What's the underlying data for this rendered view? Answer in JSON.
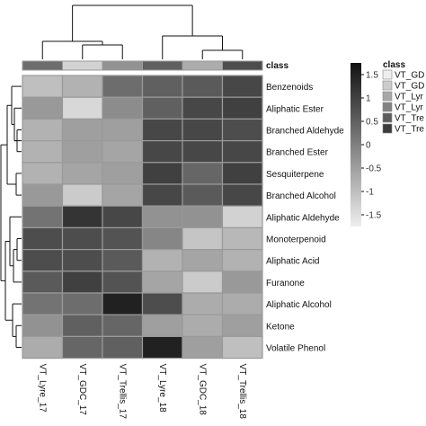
{
  "chart_data": {
    "type": "heatmap",
    "columns": [
      "VT_Lyre_17",
      "VT_GDC_17",
      "VT_Trellis_17",
      "VT_Lyre_18",
      "VT_GDC_18",
      "VT_Trellis_18"
    ],
    "rows": [
      "Benzenoids",
      "Aliphatic Ester",
      "Branched Aldehyde",
      "Branched Ester",
      "Sesquiterpene",
      "Branched Alcohol",
      "Aliphatic Aldehyde",
      "Monoterpenoid",
      "Aliphatic Acid",
      "Furanone",
      "Aliphatic Alcohol",
      "Ketone",
      "Volatile Phenol"
    ],
    "values": [
      [
        -1.0,
        -0.8,
        0.3,
        0.5,
        0.6,
        0.9
      ],
      [
        -0.4,
        -1.4,
        -0.2,
        0.5,
        0.9,
        1.0
      ],
      [
        -0.8,
        -0.5,
        -0.5,
        0.9,
        0.9,
        0.8
      ],
      [
        -0.8,
        -0.5,
        -0.6,
        0.9,
        0.9,
        0.9
      ],
      [
        -0.8,
        -0.6,
        -0.5,
        1.0,
        0.4,
        1.0
      ],
      [
        -0.4,
        -1.2,
        -0.6,
        0.9,
        0.6,
        0.9
      ],
      [
        0.2,
        1.2,
        0.9,
        -0.3,
        -0.3,
        -1.3
      ],
      [
        0.8,
        0.8,
        0.7,
        -0.1,
        -1.1,
        -0.9
      ],
      [
        0.8,
        0.8,
        0.6,
        -0.8,
        -0.6,
        -0.8
      ],
      [
        0.6,
        1.0,
        0.7,
        -0.6,
        -1.2,
        -0.4
      ],
      [
        0.2,
        0.3,
        1.5,
        0.8,
        -0.7,
        -0.7
      ],
      [
        -0.3,
        0.5,
        0.4,
        -0.5,
        -0.7,
        -0.5
      ],
      [
        -0.7,
        0.4,
        0.5,
        1.5,
        -0.5,
        -1.0
      ]
    ],
    "class_row": {
      "label": "class",
      "values": [
        0.3,
        -1.3,
        -0.3,
        0.5,
        -0.7,
        0.8
      ]
    },
    "colorbar": {
      "min": -1.75,
      "max": 1.75,
      "ticks": [
        1.5,
        1,
        0.5,
        0,
        -0.5,
        -1,
        -1.5
      ],
      "tick_labels": [
        "1.5",
        "1",
        "0.5",
        "0",
        "-0.5",
        "-1",
        "-1.5"
      ]
    },
    "legend": {
      "title": "class",
      "entries": [
        "VT_GD",
        "VT_GD",
        "VT_Lyr",
        "VT_Lyr",
        "VT_Tre",
        "VT_Tre"
      ],
      "colors": [
        "#eeeeee",
        "#cccccc",
        "#a7a7a7",
        "#828282",
        "#5d5d5d",
        "#3c3c3c"
      ]
    },
    "colors": {
      "low": "#eeeeee",
      "high": "#111111",
      "cell_border": "#9a9a9a",
      "dendrogram": "#111111"
    }
  }
}
